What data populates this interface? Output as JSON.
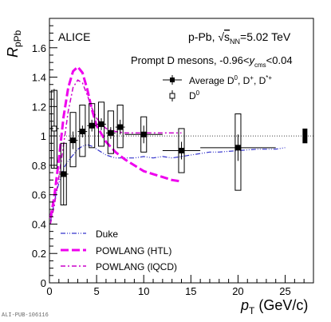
{
  "chart_data": {
    "type": "scatter",
    "xlabel": "p_T (GeV/c)",
    "xlabel_main": "p",
    "xlabel_sub": "T",
    "xlabel_units": " (GeV/c)",
    "ylabel": "R_pPb",
    "ylabel_main": "R",
    "ylabel_sub": "pPb",
    "xlim": [
      0,
      28
    ],
    "ylim": [
      0,
      1.8
    ],
    "x_ticks": [
      0,
      5,
      10,
      15,
      20,
      25
    ],
    "y_ticks": [
      0,
      0.2,
      0.4,
      0.6,
      0.8,
      1,
      1.2,
      1.4,
      1.6
    ],
    "experiment": "ALICE",
    "system_energy": "p-Pb, √s_NN=5.02 TeV",
    "system_prefix": "p-Pb, ",
    "system_sqrt": "√",
    "system_s": "s",
    "system_sub": "NN",
    "system_val": "=5.02 TeV",
    "selection_label": "Prompt D mesons, -0.96<y_cms<0.04",
    "selection_prefix": "Prompt D mesons, -0.96<",
    "selection_y": "y",
    "selection_sub": "cms",
    "selection_suffix": "<0.04",
    "reference_line": 1.0,
    "normalization_box": {
      "x": 27.1,
      "low": 0.95,
      "high": 1.05
    },
    "series": [
      {
        "name": "Average D⁰, D⁺, D*⁺",
        "name_parts": [
          "Average D",
          "0",
          ", D",
          "+",
          ", D",
          "*+"
        ],
        "marker": "filled-square",
        "x": [
          1.5,
          2.5,
          3.5,
          4.5,
          5.5,
          6.5,
          7.5,
          10,
          14,
          20
        ],
        "x_err": [
          0.5,
          0.5,
          0.5,
          0.5,
          0.5,
          0.5,
          0.5,
          2,
          2,
          4
        ],
        "y": [
          0.74,
          0.97,
          1.03,
          1.07,
          1.08,
          1.02,
          1.06,
          1.01,
          0.9,
          0.92
        ],
        "stat": [
          0.21,
          0.06,
          0.04,
          0.04,
          0.04,
          0.04,
          0.05,
          0.06,
          0.06,
          0.09
        ],
        "syst_low": [
          0.53,
          0.79,
          0.86,
          0.92,
          0.93,
          0.88,
          0.92,
          0.89,
          0.75,
          0.63
        ],
        "syst_high": [
          0.95,
          1.16,
          1.21,
          1.22,
          1.23,
          1.17,
          1.21,
          1.13,
          1.05,
          1.15
        ]
      },
      {
        "name": "D⁰",
        "name_parts": [
          "D",
          "0"
        ],
        "marker": "open-square",
        "x": [
          0.5
        ],
        "x_err": [
          0.5
        ],
        "y": [
          1.05
        ],
        "stat": [
          0.27
        ],
        "syst_low": [
          0.78
        ],
        "syst_high": [
          1.31
        ]
      }
    ],
    "models": [
      {
        "name": "Duke",
        "color": "#3333cc",
        "style": "dash-dot-dot",
        "x": [
          0.1,
          0.3,
          0.5,
          0.8,
          1.0,
          1.3,
          1.6,
          2.0,
          2.5,
          3.0,
          3.5,
          4.0,
          4.5,
          5.0,
          6.0,
          7.0,
          8.0,
          9.0,
          10,
          11,
          12,
          13,
          14,
          15,
          16,
          17,
          18,
          20,
          22,
          24,
          25
        ],
        "y": [
          0.42,
          0.47,
          0.55,
          0.63,
          0.68,
          0.74,
          0.79,
          0.83,
          0.87,
          0.91,
          0.93,
          0.94,
          0.93,
          0.91,
          0.87,
          0.85,
          0.85,
          0.85,
          0.86,
          0.85,
          0.86,
          0.85,
          0.86,
          0.87,
          0.88,
          0.89,
          0.89,
          0.9,
          0.91,
          0.91,
          0.92
        ]
      },
      {
        "name": "POWLANG (HTL)",
        "color": "#ee00ee",
        "style": "long-dash",
        "x": [
          0.1,
          0.5,
          1.0,
          1.5,
          2.0,
          2.5,
          3.0,
          3.5,
          4.0,
          4.5,
          5.0,
          6.0,
          7.0,
          8.0,
          9.0,
          10,
          11,
          12,
          13,
          14
        ],
        "y": [
          0.44,
          0.58,
          0.84,
          1.13,
          1.33,
          1.44,
          1.47,
          1.43,
          1.32,
          1.18,
          1.07,
          0.96,
          0.89,
          0.84,
          0.8,
          0.76,
          0.74,
          0.72,
          0.7,
          0.69
        ]
      },
      {
        "name": "POWLANG (lQCD)",
        "color": "#cc00cc",
        "style": "dash-dot",
        "x": [
          0.1,
          0.5,
          1.0,
          1.5,
          2.0,
          2.5,
          3.0,
          3.5,
          4.0,
          4.5,
          5.0,
          6.0,
          7.0,
          8.0,
          9.0,
          10,
          11,
          12,
          13,
          14
        ],
        "y": [
          0.4,
          0.52,
          0.72,
          0.94,
          1.17,
          1.33,
          1.38,
          1.36,
          1.28,
          1.19,
          1.12,
          1.05,
          1.03,
          1.02,
          1.02,
          1.02,
          1.02,
          1.02,
          1.02,
          1.02
        ]
      }
    ],
    "legend_placement": "top-right and bottom-left",
    "grid": false,
    "publication_id": "ALI-PUB-106116"
  }
}
